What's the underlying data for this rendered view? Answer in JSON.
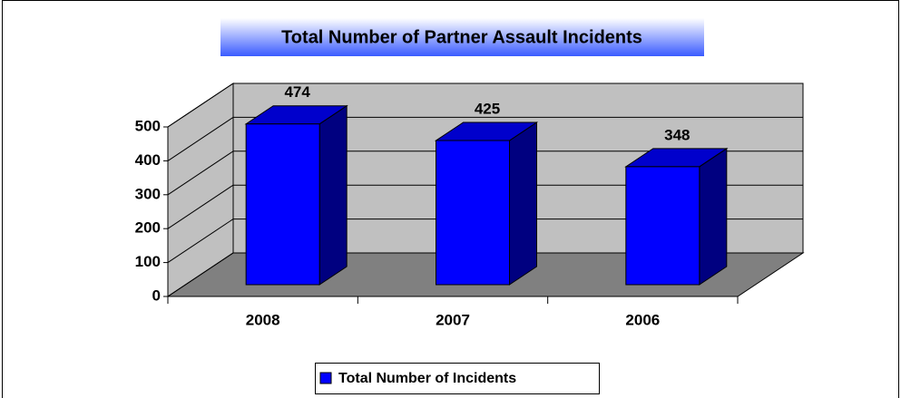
{
  "chart_data": {
    "type": "bar3d",
    "title": "Total Number of Partner Assault Incidents",
    "categories": [
      "2008",
      "2007",
      "2006"
    ],
    "series": [
      {
        "name": "Total Number of Incidents",
        "color": "#0000ff",
        "values": [
          474,
          425,
          348
        ]
      }
    ],
    "ylim": [
      0,
      500
    ],
    "yticks": [
      0,
      100,
      200,
      300,
      400,
      500
    ],
    "grid": true,
    "legend": "bottom"
  }
}
